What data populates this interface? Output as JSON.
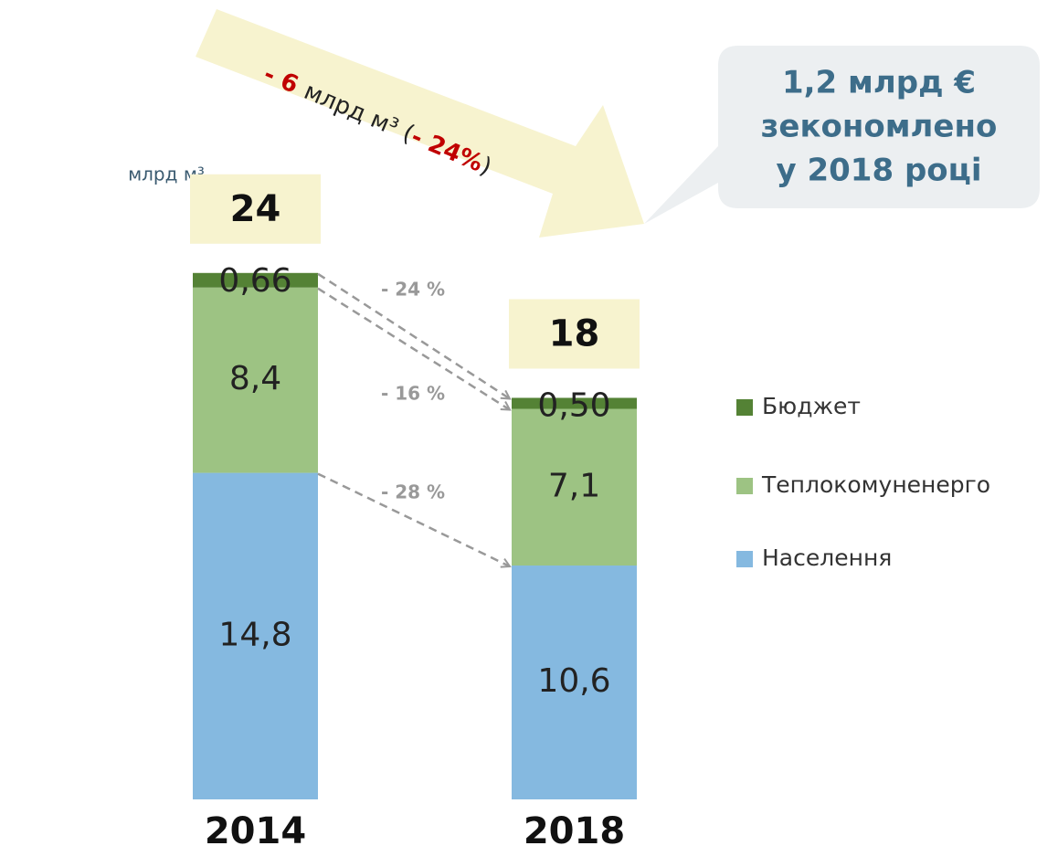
{
  "chart_data": {
    "type": "bar",
    "stacked": true,
    "unit_label": "млрд м³",
    "categories": [
      "2014",
      "2018"
    ],
    "series": [
      {
        "name": "Населення",
        "color": "#85b9e0",
        "values": [
          14.8,
          10.6
        ],
        "value_labels": [
          "14,8",
          "10,6"
        ]
      },
      {
        "name": "Теплокомуненерго",
        "color": "#9dc383",
        "values": [
          8.4,
          7.1
        ],
        "value_labels": [
          "8,4",
          "7,1"
        ]
      },
      {
        "name": "Бюджет",
        "color": "#548235",
        "values": [
          0.66,
          0.5
        ],
        "value_labels": [
          "0,66",
          "0,50"
        ]
      }
    ],
    "totals": [
      24,
      18
    ],
    "changes": [
      "- 28 %",
      "- 16 %",
      "- 24 %"
    ],
    "arrow_text": {
      "change": "- 6",
      "unit": "млрд м³ (",
      "percent": "- 24%",
      "close": ")"
    },
    "callout": [
      "1,2 млрд €",
      "зекономлено",
      "у 2018 році"
    ]
  }
}
